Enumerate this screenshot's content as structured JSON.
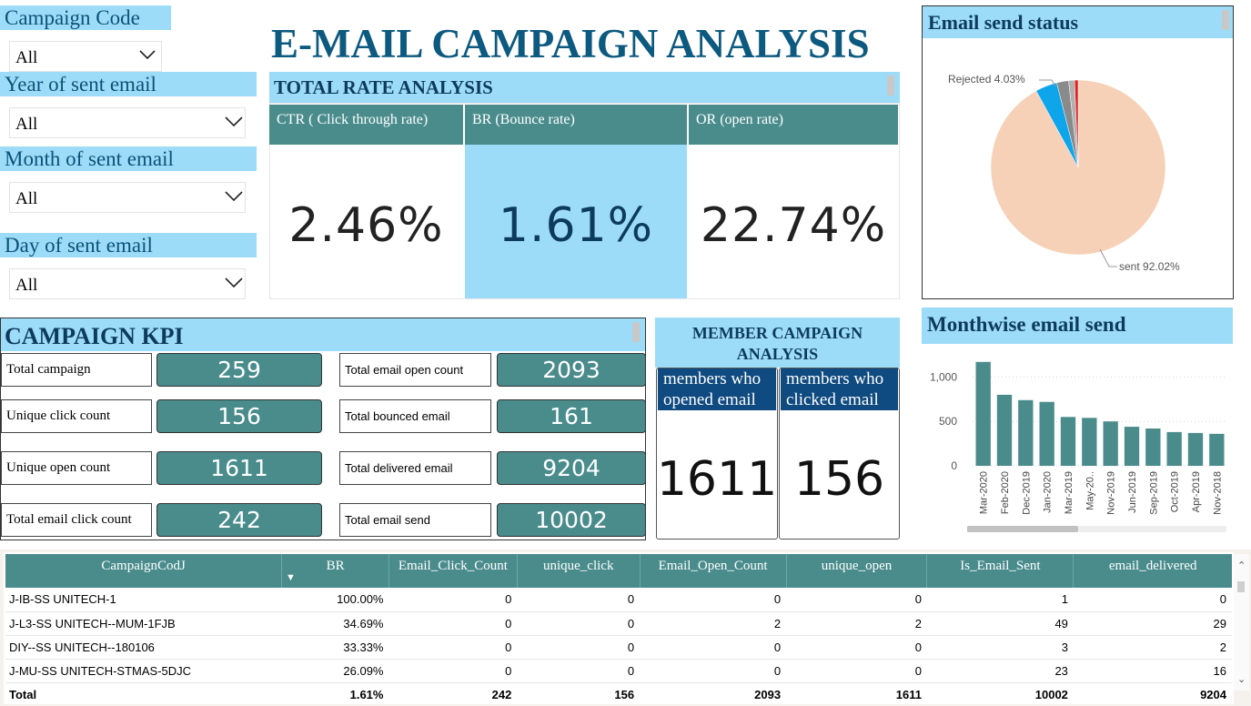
{
  "title": "E-MAIL CAMPAIGN ANALYSIS",
  "slicers": [
    {
      "label": "Campaign Code",
      "value": "All"
    },
    {
      "label": "Year of sent email",
      "value": "All"
    },
    {
      "label": "Month of sent email",
      "value": "All"
    },
    {
      "label": "Day of sent email",
      "value": "All"
    }
  ],
  "rate_analysis": {
    "header": "TOTAL RATE ANALYSIS",
    "cards": [
      {
        "label": "CTR ( Click through rate)",
        "value": "2.46%"
      },
      {
        "label": "BR (Bounce rate)",
        "value": "1.61%"
      },
      {
        "label": "OR (open rate)",
        "value": "22.74%"
      }
    ]
  },
  "send_status": {
    "header": "Email send status",
    "labels": {
      "rejected": "Rejected 4.03%",
      "sent": "sent 92.02%"
    }
  },
  "kpi": {
    "header": "CAMPAIGN KPI",
    "left": [
      {
        "label": "Total campaign",
        "value": "259"
      },
      {
        "label": "Unique click count",
        "value": "156"
      },
      {
        "label": "Unique open count",
        "value": "1611"
      },
      {
        "label": "Total email click count",
        "value": "242"
      }
    ],
    "right": [
      {
        "label": "Total email open count",
        "value": "2093"
      },
      {
        "label": "Total bounced email",
        "value": "161"
      },
      {
        "label": "Total delivered email",
        "value": "9204"
      },
      {
        "label": "Total email send",
        "value": "10002"
      }
    ]
  },
  "member": {
    "header": "MEMBER CAMPAIGN ANALYSIS",
    "opened_label": "members who opened email",
    "opened_value": "1611",
    "clicked_label": "members who clicked email",
    "clicked_value": "156"
  },
  "monthwise": {
    "header": "Monthwise email send"
  },
  "chart_data": [
    {
      "type": "pie",
      "title": "Email send status",
      "slices": [
        {
          "label": "sent",
          "value": 92.02,
          "color": "#f6d1b8"
        },
        {
          "label": "Rejected",
          "value": 4.03,
          "color": "#0ea5ea"
        },
        {
          "label": "",
          "value": 2.2,
          "color": "#8a8a8a"
        },
        {
          "label": "",
          "value": 1.1,
          "color": "#b0b0b0"
        },
        {
          "label": "",
          "value": 0.65,
          "color": "#e02020"
        }
      ]
    },
    {
      "type": "bar",
      "title": "Monthwise email send",
      "categories": [
        "Mar-2020",
        "Feb-2020",
        "Dec-2019",
        "Jan-2020",
        "Mar-2019",
        "May-20..",
        "Nov-2019",
        "Jun-2019",
        "Sep-2019",
        "Oct-2019",
        "Apr-2019",
        "Nov-2018"
      ],
      "values": [
        1170,
        800,
        740,
        720,
        550,
        540,
        500,
        440,
        420,
        380,
        370,
        360
      ],
      "yticks": [
        "1,000",
        "500",
        "0"
      ],
      "ylim": [
        0,
        1250
      ],
      "color": "#4a8c8c",
      "grid": true
    }
  ],
  "table": {
    "columns": [
      "CampaignCodJ",
      "BR",
      "Email_Click_Count",
      "unique_click",
      "Email_Open_Count",
      "unique_open",
      "Is_Email_Sent",
      "email_delivered"
    ],
    "rows": [
      [
        "J-IB-SS UNITECH-1",
        "100.00%",
        "0",
        "0",
        "0",
        "0",
        "1",
        "0"
      ],
      [
        "J-L3-SS UNITECH--MUM-1FJB",
        "34.69%",
        "0",
        "0",
        "2",
        "2",
        "49",
        "29"
      ],
      [
        "DIY--SS UNITECH--180106",
        "33.33%",
        "0",
        "0",
        "0",
        "0",
        "3",
        "2"
      ],
      [
        "J-MU-SS UNITECH-STMAS-5DJC",
        "26.09%",
        "0",
        "0",
        "0",
        "0",
        "23",
        "16"
      ]
    ],
    "total": [
      "Total",
      "1.61%",
      "242",
      "156",
      "2093",
      "1611",
      "10002",
      "9204"
    ]
  }
}
